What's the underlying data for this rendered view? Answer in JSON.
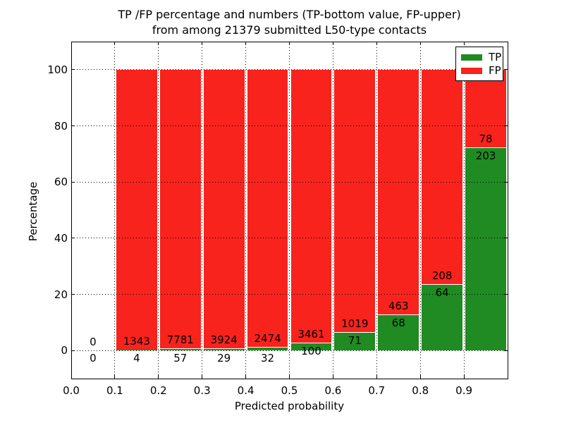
{
  "title": {
    "line1": "TP /FP percentage and numbers (TP-bottom value, FP-upper)",
    "line2": "from among 21379 submitted L50-type contacts"
  },
  "colors": {
    "tp_green": "#1f8b22",
    "fp_red": "#f8231d",
    "grid": "#000000",
    "background": "#ffffff"
  },
  "chart_data": {
    "type": "bar",
    "stacked": true,
    "normalized_to_percent": true,
    "title": "TP /FP percentage and numbers (TP-bottom value, FP-upper) from among 21379 submitted L50-type contacts",
    "xlabel": "Predicted probability",
    "ylabel": "Percentage",
    "xlim": [
      0.0,
      1.0
    ],
    "ylim": [
      -10,
      110
    ],
    "grid": "dotted",
    "legend_position": "upper right",
    "total_contacts": 21379,
    "x_tick_labels": [
      "0.0",
      "0.1",
      "0.2",
      "0.3",
      "0.4",
      "0.5",
      "0.6",
      "0.7",
      "0.8",
      "0.9"
    ],
    "y_tick_values": [
      0,
      20,
      40,
      60,
      80,
      100
    ],
    "y_tick_labels": [
      "0",
      "20",
      "40",
      "60",
      "80",
      "100"
    ],
    "bin_edges": [
      0.0,
      0.1,
      0.2,
      0.3,
      0.4,
      0.5,
      0.6,
      0.7,
      0.8,
      0.9,
      1.0
    ],
    "series": [
      {
        "name": "TP",
        "color": "#1f8b22",
        "counts": [
          0,
          4,
          57,
          29,
          32,
          100,
          71,
          68,
          64,
          203
        ]
      },
      {
        "name": "FP",
        "color": "#f8231d",
        "counts": [
          0,
          1343,
          7781,
          3924,
          2474,
          3461,
          1019,
          463,
          208,
          78
        ]
      }
    ],
    "legend": [
      {
        "label": "TP",
        "color": "#1f8b22"
      },
      {
        "label": "FP",
        "color": "#f8231d"
      }
    ]
  }
}
